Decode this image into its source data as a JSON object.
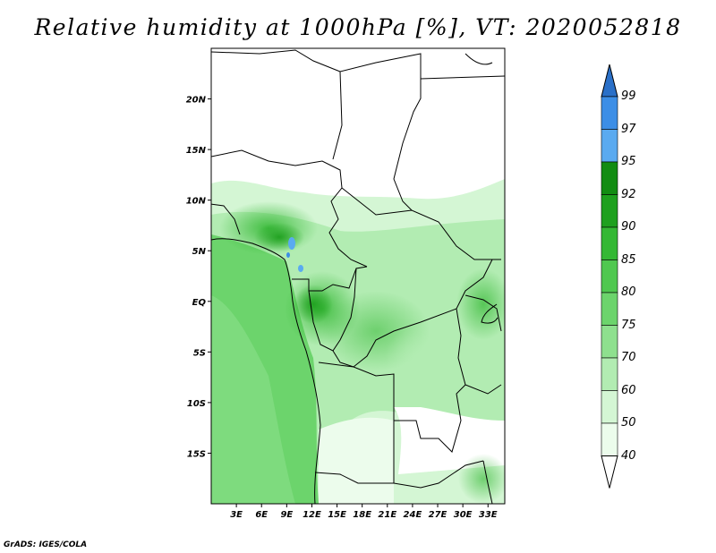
{
  "title": "Relative humidity at 1000hPa [%], VT: 2020052818",
  "credit": "GrADS: IGES/COLA",
  "map": {
    "lat_labels": [
      {
        "lat": 20,
        "label": "20N"
      },
      {
        "lat": 15,
        "label": "15N"
      },
      {
        "lat": 10,
        "label": "10N"
      },
      {
        "lat": 5,
        "label": "5N"
      },
      {
        "lat": 0,
        "label": "EQ"
      },
      {
        "lat": -5,
        "label": "5S"
      },
      {
        "lat": -10,
        "label": "10S"
      },
      {
        "lat": -15,
        "label": "15S"
      }
    ],
    "lon_labels": [
      {
        "lon": 3,
        "label": "3E"
      },
      {
        "lon": 6,
        "label": "6E"
      },
      {
        "lon": 9,
        "label": "9E"
      },
      {
        "lon": 12,
        "label": "12E"
      },
      {
        "lon": 15,
        "label": "15E"
      },
      {
        "lon": 18,
        "label": "18E"
      },
      {
        "lon": 21,
        "label": "21E"
      },
      {
        "lon": 24,
        "label": "24E"
      },
      {
        "lon": 27,
        "label": "27E"
      },
      {
        "lon": 30,
        "label": "30E"
      },
      {
        "lon": 33,
        "label": "33E"
      }
    ],
    "lon_range": [
      0,
      35
    ],
    "lat_range": [
      -20,
      25
    ]
  },
  "colorbar": {
    "levels": [
      {
        "value": "99",
        "color": "#2a70c8"
      },
      {
        "value": "97",
        "color": "#3c8ee6"
      },
      {
        "value": "95",
        "color": "#5aaaf0"
      },
      {
        "value": "92",
        "color": "#128c12"
      },
      {
        "value": "90",
        "color": "#1ea01e"
      },
      {
        "value": "85",
        "color": "#34b834"
      },
      {
        "value": "80",
        "color": "#50c850"
      },
      {
        "value": "75",
        "color": "#6cd46c"
      },
      {
        "value": "70",
        "color": "#8ee08e"
      },
      {
        "value": "60",
        "color": "#b2ecb2"
      },
      {
        "value": "50",
        "color": "#d4f6d4"
      },
      {
        "value": "40",
        "color": "#ecfcec"
      }
    ],
    "top_color": "#2a70c8",
    "bottom_color": "#ffffff"
  }
}
